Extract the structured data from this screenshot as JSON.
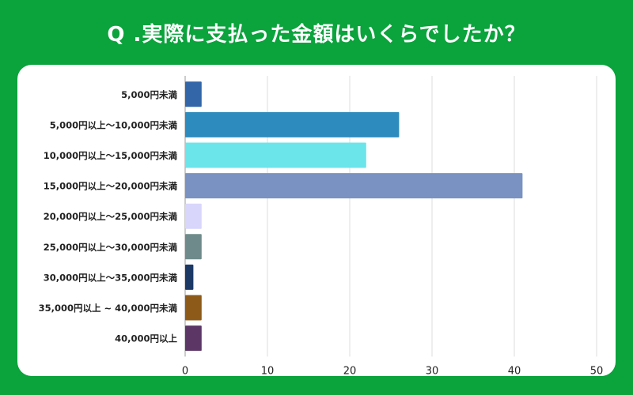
{
  "title": "Q .実際に支払った金額はいくらでしたか？",
  "chart_data": {
    "type": "bar",
    "orientation": "horizontal",
    "title": "Q .実際に支払った金額はいくらでしたか？",
    "xlabel": "",
    "ylabel": "",
    "xlim": [
      0,
      50
    ],
    "xticks": [
      0,
      10,
      20,
      30,
      40,
      50
    ],
    "grid": true,
    "categories": [
      "5,000円未満",
      "5,000円以上〜10,000円未満",
      "10,000円以上〜15,000円未満",
      "15,000円以上〜20,000円未満",
      "20,000円以上〜25,000円未満",
      "25,000円以上〜30,000円未満",
      "30,000円以上〜35,000円未満",
      "35,000円以上 ~ 40,000円未満",
      "40,000円以上"
    ],
    "values": [
      2,
      26,
      22,
      41,
      2,
      2,
      1,
      2,
      2
    ],
    "colors": [
      "#3266a8",
      "#2e8bbd",
      "#6be4ea",
      "#7a92c2",
      "#d8d6fb",
      "#6f8a8a",
      "#1c3966",
      "#8d5a1a",
      "#5c3766"
    ]
  }
}
